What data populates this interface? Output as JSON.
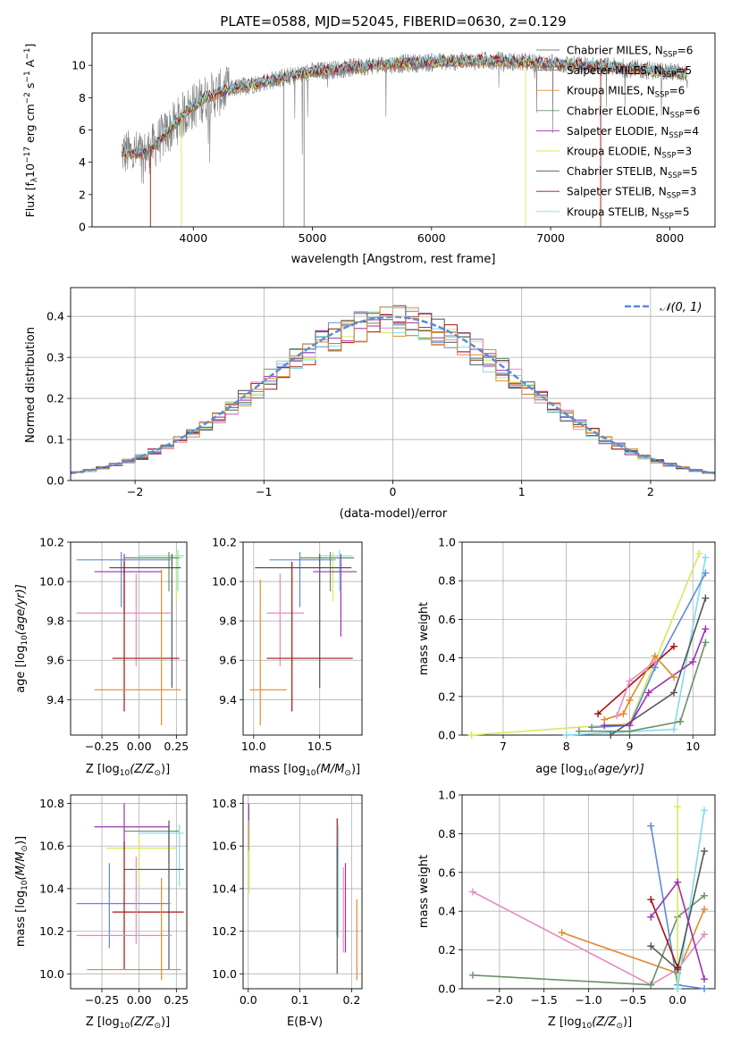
{
  "colors": {
    "chabrier_miles": "#808080",
    "salpeter_miles": "#7f7f7f",
    "kroupa_miles": "#e08a2c",
    "chabrier_elodie": "#6b8f6b",
    "salpeter_elodie": "#9b30b0",
    "kroupa_elodie": "#d4ea5a",
    "chabrier_stelib": "#555555",
    "salpeter_stelib": "#a81010",
    "kroupa_stelib": "#7fdde8",
    "blue": "#5b8bd8",
    "pink": "#e88ac0",
    "gaussian": "#5b8bd8",
    "grid": "#b0b0b0"
  },
  "chart_data": [
    {
      "type": "line",
      "title": "PLATE=0588, MJD=52045, FIBERID=0630, z=0.129",
      "xlabel": "wavelength [Angstrom, rest frame]",
      "ylabel": "Flux [f",
      "ylabel_sub": "λ",
      "ylabel_rest": "10",
      "ylabel_exp": "−17",
      "ylabel_units": " erg cm",
      "ylabel_units_exp": "−2",
      "ylabel_s": " s",
      "ylabel_s_exp": "−1",
      "ylabel_a": " A",
      "ylabel_a_exp": "−1",
      "ylabel_end": "]",
      "xlim": [
        3150,
        8380
      ],
      "ylim": [
        0,
        12
      ],
      "xticks": [
        4000,
        5000,
        6000,
        7000,
        8000
      ],
      "yticks": [
        0,
        2,
        4,
        6,
        8,
        10
      ],
      "grid": false,
      "legend_position": "top-right",
      "series": [
        {
          "name": "Chabrier MILES, N",
          "sub": "SSP",
          "tail": "=6",
          "key": "chabrier_miles"
        },
        {
          "name": "Salpeter MILES, N",
          "sub": "SSP",
          "tail": "=5",
          "key": "salpeter_miles"
        },
        {
          "name": "Kroupa MILES, N",
          "sub": "SSP",
          "tail": "=6",
          "key": "kroupa_miles"
        },
        {
          "name": "Chabrier ELODIE, N",
          "sub": "SSP",
          "tail": "=6",
          "key": "chabrier_elodie"
        },
        {
          "name": "Salpeter ELODIE, N",
          "sub": "SSP",
          "tail": "=4",
          "key": "salpeter_elodie"
        },
        {
          "name": "Kroupa ELODIE, N",
          "sub": "SSP",
          "tail": "=3",
          "key": "kroupa_elodie"
        },
        {
          "name": "Chabrier STELIB, N",
          "sub": "SSP",
          "tail": "=5",
          "key": "chabrier_stelib"
        },
        {
          "name": "Salpeter STELIB, N",
          "sub": "SSP",
          "tail": "=3",
          "key": "salpeter_stelib"
        },
        {
          "name": "Kroupa STELIB, N",
          "sub": "SSP",
          "tail": "=5",
          "key": "kroupa_stelib"
        }
      ],
      "spectrum_shape": {
        "x": [
          3400,
          3600,
          3800,
          3950,
          4100,
          4300,
          4600,
          5000,
          5500,
          6000,
          6500,
          7000,
          7500,
          8000,
          8150
        ],
        "y": [
          4.6,
          4.5,
          6.0,
          7.2,
          8.0,
          8.5,
          9.0,
          9.6,
          10.0,
          10.2,
          10.3,
          10.1,
          9.9,
          9.6,
          9.5
        ]
      }
    },
    {
      "type": "step-histogram",
      "xlabel": "(data-model)/error",
      "ylabel": "Normed distribution",
      "xlim": [
        -2.5,
        2.5
      ],
      "ylim": [
        0,
        0.47
      ],
      "xticks": [
        -2,
        -1,
        0,
        1,
        2
      ],
      "xtick_labels": [
        "−2",
        "−1",
        "0",
        "1",
        "2"
      ],
      "yticks": [
        0.0,
        0.1,
        0.2,
        0.3,
        0.4
      ],
      "ytick_labels": [
        "0.0",
        "0.1",
        "0.2",
        "0.3",
        "0.4"
      ],
      "grid": true,
      "bin_width": 0.1,
      "legend": {
        "label": "𝒩(0, 1)",
        "position": "top-right"
      }
    },
    {
      "type": "scatter",
      "xlabel": "Z [log",
      "xlabel_sub": "10",
      "xlabel_rest": "(Z/Z",
      "xlabel_sub2": "⊙",
      "xlabel_end": ")]",
      "ylabel": "age  [log",
      "ylabel_sub": "10",
      "ylabel_rest": "(age/yr)]",
      "xlim": [
        -0.46,
        0.32
      ],
      "ylim": [
        9.22,
        10.2
      ],
      "xticks": [
        -0.25,
        0.0,
        0.25
      ],
      "xtick_labels": [
        "−0.25",
        "0.00",
        "0.25"
      ],
      "yticks": [
        9.4,
        9.6,
        9.8,
        10.0,
        10.2
      ],
      "ytick_labels": [
        "9.4",
        "9.6",
        "9.8",
        "10.0",
        "10.2"
      ],
      "grid": true,
      "points": [
        {
          "key": "blue",
          "x": -0.12,
          "y": 10.11,
          "x_lo": -0.42,
          "x_hi": 0.21,
          "y_lo": 9.87,
          "y_hi": 10.15
        },
        {
          "key": "kroupa_stelib",
          "x": 0.26,
          "y": 10.13,
          "x_lo": -0.01,
          "x_hi": 0.3,
          "y_lo": 9.95,
          "y_hi": 10.16
        },
        {
          "key": "kroupa_elodie",
          "x": 0.25,
          "y": 10.12,
          "x_lo": 0.0,
          "x_hi": 0.29,
          "y_lo": 9.9,
          "y_hi": 10.15
        },
        {
          "key": "chabrier_elodie",
          "x": 0.2,
          "y": 10.12,
          "x_lo": -0.1,
          "x_hi": 0.27,
          "y_lo": 9.95,
          "y_hi": 10.15
        },
        {
          "key": "chabrier_stelib",
          "x": 0.22,
          "y": 10.07,
          "x_lo": -0.2,
          "x_hi": 0.28,
          "y_lo": 9.46,
          "y_hi": 10.14
        },
        {
          "key": "salpeter_elodie",
          "x": -0.1,
          "y": 10.05,
          "x_lo": -0.3,
          "x_hi": 0.15,
          "y_lo": 9.85,
          "y_hi": 10.14
        },
        {
          "key": "pink",
          "x": -0.02,
          "y": 9.84,
          "x_lo": -0.42,
          "x_hi": 0.22,
          "y_lo": 9.57,
          "y_hi": 10.04
        },
        {
          "key": "salpeter_stelib",
          "x": -0.1,
          "y": 9.61,
          "x_lo": -0.18,
          "x_hi": 0.27,
          "y_lo": 9.34,
          "y_hi": 10.1
        },
        {
          "key": "kroupa_miles",
          "x": 0.15,
          "y": 9.45,
          "x_lo": -0.3,
          "x_hi": 0.28,
          "y_lo": 9.27,
          "y_hi": 10.06
        }
      ]
    },
    {
      "type": "scatter",
      "xlabel": "mass [log",
      "xlabel_sub": "10",
      "xlabel_rest": "(M/M",
      "xlabel_sub2": "⊙",
      "xlabel_end": ")]",
      "xlim": [
        9.92,
        10.82
      ],
      "ylim": [
        9.22,
        10.2
      ],
      "xticks": [
        10.0,
        10.5
      ],
      "xtick_labels": [
        "10.0",
        "10.5"
      ],
      "yticks": [
        9.4,
        9.6,
        9.8,
        10.0,
        10.2
      ],
      "ytick_labels": [
        "9.4",
        "9.6",
        "9.8",
        "10.0",
        "10.2"
      ],
      "grid": true,
      "points": [
        {
          "key": "blue",
          "x": 10.35,
          "y": 10.11,
          "x_lo": 10.12,
          "x_hi": 10.62,
          "y_lo": 9.87,
          "y_hi": 10.15
        },
        {
          "key": "kroupa_stelib",
          "x": 10.65,
          "y": 10.13,
          "x_lo": 10.5,
          "x_hi": 10.75,
          "y_lo": 9.95,
          "y_hi": 10.16
        },
        {
          "key": "kroupa_elodie",
          "x": 10.6,
          "y": 10.12,
          "x_lo": 10.45,
          "x_hi": 10.75,
          "y_lo": 9.9,
          "y_hi": 10.15
        },
        {
          "key": "chabrier_elodie",
          "x": 10.58,
          "y": 10.12,
          "x_lo": 10.35,
          "x_hi": 10.76,
          "y_lo": 9.95,
          "y_hi": 10.15
        },
        {
          "key": "chabrier_stelib",
          "x": 10.5,
          "y": 10.07,
          "x_lo": 10.01,
          "x_hi": 10.74,
          "y_lo": 9.46,
          "y_hi": 10.14
        },
        {
          "key": "salpeter_elodie",
          "x": 10.66,
          "y": 10.05,
          "x_lo": 10.45,
          "x_hi": 10.78,
          "y_lo": 9.72,
          "y_hi": 10.14
        },
        {
          "key": "pink",
          "x": 10.2,
          "y": 9.84,
          "x_lo": 10.1,
          "x_hi": 10.38,
          "y_lo": 9.57,
          "y_hi": 10.04
        },
        {
          "key": "salpeter_stelib",
          "x": 10.29,
          "y": 9.61,
          "x_lo": 10.1,
          "x_hi": 10.75,
          "y_lo": 9.34,
          "y_hi": 10.1
        },
        {
          "key": "kroupa_miles",
          "x": 10.05,
          "y": 9.45,
          "x_lo": 9.97,
          "x_hi": 10.25,
          "y_lo": 9.27,
          "y_hi": 10.01
        }
      ]
    },
    {
      "type": "line",
      "xlabel": "age  [log",
      "xlabel_sub": "10",
      "xlabel_rest": "(age/yr)]",
      "ylabel": "mass weight",
      "xlim": [
        6.35,
        10.35
      ],
      "ylim": [
        0,
        1.0
      ],
      "xticks": [
        7,
        8,
        9,
        10
      ],
      "xtick_labels": [
        "7",
        "8",
        "9",
        "10"
      ],
      "yticks": [
        0.0,
        0.2,
        0.4,
        0.6,
        0.8,
        1.0
      ],
      "ytick_labels": [
        "0.0",
        "0.2",
        "0.4",
        "0.6",
        "0.8",
        "1.0"
      ],
      "grid": true,
      "series": [
        {
          "key": "kroupa_elodie",
          "x": [
            6.5,
            9.0,
            10.1
          ],
          "y": [
            0.0,
            0.06,
            0.94
          ]
        },
        {
          "key": "kroupa_stelib",
          "x": [
            8.0,
            9.7,
            10.2
          ],
          "y": [
            0.0,
            0.03,
            0.92
          ]
        },
        {
          "key": "blue",
          "x": [
            8.4,
            9.0,
            9.4,
            10.2
          ],
          "y": [
            0.04,
            0.05,
            0.35,
            0.84
          ]
        },
        {
          "key": "chabrier_stelib",
          "x": [
            8.7,
            9.7,
            10.2
          ],
          "y": [
            0.0,
            0.22,
            0.71
          ]
        },
        {
          "key": "salpeter_elodie",
          "x": [
            8.6,
            9.0,
            9.3,
            10.0,
            10.2
          ],
          "y": [
            0.05,
            0.05,
            0.22,
            0.38,
            0.55
          ]
        },
        {
          "key": "chabrier_elodie",
          "x": [
            8.2,
            9.0,
            9.8,
            10.2
          ],
          "y": [
            0.02,
            0.02,
            0.07,
            0.48
          ]
        },
        {
          "key": "salpeter_stelib",
          "x": [
            8.5,
            9.7
          ],
          "y": [
            0.11,
            0.46
          ]
        },
        {
          "key": "kroupa_miles",
          "x": [
            8.6,
            8.9,
            9.0,
            9.4,
            9.7
          ],
          "y": [
            0.08,
            0.11,
            0.18,
            0.41,
            0.3
          ]
        },
        {
          "key": "pink",
          "x": [
            8.8,
            9.0,
            9.4
          ],
          "y": [
            0.1,
            0.28,
            0.38
          ]
        }
      ]
    },
    {
      "type": "scatter",
      "xlabel": "Z [log",
      "xlabel_sub": "10",
      "xlabel_rest": "(Z/Z",
      "xlabel_sub2": "⊙",
      "xlabel_end": ")]",
      "ylabel": "mass [log",
      "ylabel_sub": "10",
      "ylabel_rest": "(M/M",
      "ylabel_sub2": "⊙",
      "ylabel_end": ")]",
      "xlim": [
        -0.46,
        0.32
      ],
      "ylim": [
        9.93,
        10.84
      ],
      "xticks": [
        -0.25,
        0.0,
        0.25
      ],
      "xtick_labels": [
        "−0.25",
        "0.00",
        "0.25"
      ],
      "yticks": [
        10.0,
        10.2,
        10.4,
        10.6,
        10.8
      ],
      "ytick_labels": [
        "10.0",
        "10.2",
        "10.4",
        "10.6",
        "10.8"
      ],
      "grid": true,
      "points": [
        {
          "key": "salpeter_elodie",
          "x": -0.1,
          "y": 10.69,
          "x_lo": -0.3,
          "x_hi": 0.2,
          "y_lo": 10.58,
          "y_hi": 10.8
        },
        {
          "key": "chabrier_elodie",
          "x": 0.2,
          "y": 10.67,
          "x_lo": -0.1,
          "x_hi": 0.27,
          "y_lo": 10.52,
          "y_hi": 10.7
        },
        {
          "key": "kroupa_stelib",
          "x": 0.27,
          "y": 10.66,
          "x_lo": 0.0,
          "x_hi": 0.3,
          "y_lo": 10.41,
          "y_hi": 10.7
        },
        {
          "key": "kroupa_elodie",
          "x": 0.0,
          "y": 10.59,
          "x_lo": -0.22,
          "x_hi": 0.25,
          "y_lo": 10.42,
          "y_hi": 10.65
        },
        {
          "key": "chabrier_stelib",
          "x": 0.2,
          "y": 10.49,
          "x_lo": -0.1,
          "x_hi": 0.3,
          "y_lo": 10.02,
          "y_hi": 10.72
        },
        {
          "key": "blue",
          "x": -0.2,
          "y": 10.33,
          "x_lo": -0.42,
          "x_hi": 0.21,
          "y_lo": 10.12,
          "y_hi": 10.52
        },
        {
          "key": "salpeter_stelib",
          "x": -0.1,
          "y": 10.29,
          "x_lo": -0.18,
          "x_hi": 0.3,
          "y_lo": 10.02,
          "y_hi": 10.62
        },
        {
          "key": "pink",
          "x": -0.02,
          "y": 10.18,
          "x_lo": -0.42,
          "x_hi": 0.22,
          "y_lo": 10.14,
          "y_hi": 10.55
        },
        {
          "key": "kroupa_miles",
          "x": 0.15,
          "y": 10.02,
          "x_lo": -0.35,
          "x_hi": 0.28,
          "y_lo": 9.97,
          "y_hi": 10.45
        }
      ]
    },
    {
      "type": "scatter",
      "xlabel": "E(B-V)",
      "xlim": [
        -0.01,
        0.22
      ],
      "ylim": [
        9.93,
        10.84
      ],
      "xticks": [
        0.0,
        0.1,
        0.2
      ],
      "xtick_labels": [
        "0.0",
        "0.1",
        "0.2"
      ],
      "yticks": [
        10.0,
        10.2,
        10.4,
        10.6,
        10.8
      ],
      "ytick_labels": [
        "10.0",
        "10.2",
        "10.4",
        "10.6",
        "10.8"
      ],
      "grid": true,
      "points": [
        {
          "key": "salpeter_elodie",
          "x": 0.001,
          "y": 10.69,
          "y_lo": 10.58,
          "y_hi": 10.8
        },
        {
          "key": "kroupa_elodie",
          "x": 0.002,
          "y": 10.59,
          "y_lo": 10.38,
          "y_hi": 10.72
        },
        {
          "key": "salpeter_stelib",
          "x": 0.172,
          "y": 10.45,
          "y_lo": 10.18,
          "y_hi": 10.73
        },
        {
          "key": "kroupa_stelib",
          "x": 0.174,
          "y": 10.45,
          "y_lo": 10.17,
          "y_hi": 10.7
        },
        {
          "key": "chabrier_stelib",
          "x": 0.172,
          "y": 10.3,
          "y_lo": 10.0,
          "y_hi": 10.6
        },
        {
          "key": "pink",
          "x": 0.184,
          "y": 10.35,
          "y_lo": 10.1,
          "y_hi": 10.5
        },
        {
          "key": "salpeter_elodie",
          "x": 0.188,
          "y": 10.35,
          "y_lo": 10.1,
          "y_hi": 10.52
        },
        {
          "key": "kroupa_miles",
          "x": 0.21,
          "y": 10.18,
          "y_lo": 9.97,
          "y_hi": 10.35
        }
      ]
    },
    {
      "type": "line",
      "xlabel": "Z [log",
      "xlabel_sub": "10",
      "xlabel_rest": "(Z/Z",
      "xlabel_sub2": "⊙",
      "xlabel_end": ")]",
      "ylabel": "mass weight",
      "xlim": [
        -2.42,
        0.42
      ],
      "ylim": [
        0,
        1.0
      ],
      "xticks": [
        -2.0,
        -1.5,
        -1.0,
        -0.5,
        0.0
      ],
      "xtick_labels": [
        "−2.0",
        "−1.5",
        "−1.0",
        "−0.5",
        "0.0"
      ],
      "yticks": [
        0.0,
        0.2,
        0.4,
        0.6,
        0.8,
        1.0
      ],
      "ytick_labels": [
        "0.0",
        "0.2",
        "0.4",
        "0.6",
        "0.8",
        "1.0"
      ],
      "grid": true,
      "series": [
        {
          "key": "pink",
          "x": [
            -2.3,
            -0.3,
            0.0,
            0.3
          ],
          "y": [
            0.5,
            0.02,
            0.1,
            0.28
          ]
        },
        {
          "key": "kroupa_miles",
          "x": [
            -1.3,
            0.0,
            0.3
          ],
          "y": [
            0.29,
            0.08,
            0.41
          ]
        },
        {
          "key": "chabrier_elodie",
          "x": [
            -2.3,
            -0.3,
            0.0,
            0.3
          ],
          "y": [
            0.07,
            0.02,
            0.37,
            0.48
          ]
        },
        {
          "key": "blue",
          "x": [
            -0.3,
            0.0,
            0.3
          ],
          "y": [
            0.84,
            0.02,
            0.0
          ]
        },
        {
          "key": "kroupa_elodie",
          "x": [
            0.0,
            0.0
          ],
          "y": [
            0.0,
            0.94
          ]
        },
        {
          "key": "kroupa_stelib",
          "x": [
            0.0,
            0.3
          ],
          "y": [
            0.0,
            0.92
          ]
        },
        {
          "key": "chabrier_stelib",
          "x": [
            -0.3,
            0.0,
            0.3
          ],
          "y": [
            0.22,
            0.1,
            0.71
          ]
        },
        {
          "key": "salpeter_stelib",
          "x": [
            -0.3,
            0.0
          ],
          "y": [
            0.46,
            0.11
          ]
        },
        {
          "key": "salpeter_elodie",
          "x": [
            -0.3,
            0.0,
            0.3
          ],
          "y": [
            0.37,
            0.55,
            0.05
          ]
        }
      ]
    }
  ]
}
